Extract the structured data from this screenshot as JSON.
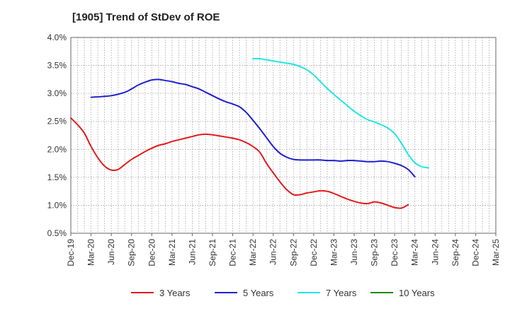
{
  "chart_data": {
    "type": "line",
    "title": "[1905]  Trend of StDev of ROE",
    "xlabel": "",
    "ylabel": "",
    "ylim": [
      0.5,
      4.0
    ],
    "y_ticks": [
      0.5,
      1.0,
      1.5,
      2.0,
      2.5,
      3.0,
      3.5,
      4.0
    ],
    "y_tick_labels": [
      "0.5%",
      "1.0%",
      "1.5%",
      "2.0%",
      "2.5%",
      "3.0%",
      "3.5%",
      "4.0%"
    ],
    "x_tick_labels": [
      "Dec-19",
      "Mar-20",
      "Jun-20",
      "Sep-20",
      "Dec-20",
      "Mar-21",
      "Jun-21",
      "Sep-21",
      "Dec-21",
      "Mar-22",
      "Jun-22",
      "Sep-22",
      "Dec-22",
      "Mar-23",
      "Jun-23",
      "Sep-23",
      "Dec-23",
      "Mar-24",
      "Jun-24",
      "Sep-24",
      "Dec-24",
      "Mar-25"
    ],
    "grid": true,
    "legend_position": "bottom",
    "series": [
      {
        "name": "3 Years",
        "color": "#e31a1c",
        "points": [
          [
            0,
            2.56
          ],
          [
            1,
            2.44
          ],
          [
            2,
            2.29
          ],
          [
            3,
            2.05
          ],
          [
            4,
            1.85
          ],
          [
            5,
            1.7
          ],
          [
            6,
            1.63
          ],
          [
            7,
            1.64
          ],
          [
            8,
            1.73
          ],
          [
            9,
            1.82
          ],
          [
            10,
            1.89
          ],
          [
            11,
            1.96
          ],
          [
            12,
            2.02
          ],
          [
            13,
            2.07
          ],
          [
            14,
            2.1
          ],
          [
            15,
            2.14
          ],
          [
            16,
            2.17
          ],
          [
            17,
            2.2
          ],
          [
            18,
            2.23
          ],
          [
            19,
            2.26
          ],
          [
            20,
            2.27
          ],
          [
            21,
            2.26
          ],
          [
            22,
            2.24
          ],
          [
            23,
            2.22
          ],
          [
            24,
            2.2
          ],
          [
            25,
            2.17
          ],
          [
            26,
            2.12
          ],
          [
            27,
            2.05
          ],
          [
            28,
            1.95
          ],
          [
            29,
            1.75
          ],
          [
            30,
            1.58
          ],
          [
            31,
            1.42
          ],
          [
            32,
            1.28
          ],
          [
            33,
            1.19
          ],
          [
            34,
            1.19
          ],
          [
            35,
            1.22
          ],
          [
            36,
            1.24
          ],
          [
            37,
            1.26
          ],
          [
            38,
            1.25
          ],
          [
            39,
            1.21
          ],
          [
            40,
            1.16
          ],
          [
            41,
            1.11
          ],
          [
            42,
            1.07
          ],
          [
            43,
            1.04
          ],
          [
            44,
            1.03
          ],
          [
            45,
            1.06
          ],
          [
            46,
            1.04
          ],
          [
            47,
            1.0
          ],
          [
            48,
            0.96
          ],
          [
            49,
            0.95
          ],
          [
            50,
            1.01
          ]
        ]
      },
      {
        "name": "5 Years",
        "color": "#1f1fd0",
        "points": [
          [
            3,
            2.93
          ],
          [
            6,
            2.96
          ],
          [
            8,
            3.02
          ],
          [
            9,
            3.08
          ],
          [
            10,
            3.15
          ],
          [
            11,
            3.2
          ],
          [
            12,
            3.24
          ],
          [
            13,
            3.25
          ],
          [
            14,
            3.23
          ],
          [
            15,
            3.21
          ],
          [
            16,
            3.18
          ],
          [
            17,
            3.16
          ],
          [
            18,
            3.12
          ],
          [
            19,
            3.08
          ],
          [
            20,
            3.02
          ],
          [
            21,
            2.96
          ],
          [
            22,
            2.9
          ],
          [
            23,
            2.85
          ],
          [
            24,
            2.81
          ],
          [
            25,
            2.76
          ],
          [
            26,
            2.66
          ],
          [
            27,
            2.52
          ],
          [
            28,
            2.37
          ],
          [
            29,
            2.21
          ],
          [
            30,
            2.05
          ],
          [
            31,
            1.93
          ],
          [
            32,
            1.86
          ],
          [
            33,
            1.82
          ],
          [
            34,
            1.81
          ],
          [
            35,
            1.81
          ],
          [
            36,
            1.81
          ],
          [
            37,
            1.81
          ],
          [
            38,
            1.8
          ],
          [
            39,
            1.8
          ],
          [
            40,
            1.79
          ],
          [
            41,
            1.8
          ],
          [
            42,
            1.8
          ],
          [
            43,
            1.79
          ],
          [
            44,
            1.78
          ],
          [
            45,
            1.78
          ],
          [
            46,
            1.79
          ],
          [
            47,
            1.78
          ],
          [
            48,
            1.75
          ],
          [
            49,
            1.71
          ],
          [
            50,
            1.64
          ],
          [
            51,
            1.51
          ]
        ]
      },
      {
        "name": "7 Years",
        "color": "#22e5e5",
        "points": [
          [
            27,
            3.62
          ],
          [
            28,
            3.62
          ],
          [
            29,
            3.6
          ],
          [
            30,
            3.58
          ],
          [
            31,
            3.56
          ],
          [
            32,
            3.54
          ],
          [
            33,
            3.52
          ],
          [
            34,
            3.48
          ],
          [
            35,
            3.42
          ],
          [
            36,
            3.33
          ],
          [
            37,
            3.21
          ],
          [
            38,
            3.09
          ],
          [
            39,
            2.98
          ],
          [
            40,
            2.88
          ],
          [
            41,
            2.78
          ],
          [
            42,
            2.68
          ],
          [
            43,
            2.6
          ],
          [
            44,
            2.53
          ],
          [
            45,
            2.49
          ],
          [
            46,
            2.44
          ],
          [
            47,
            2.38
          ],
          [
            48,
            2.28
          ],
          [
            49,
            2.11
          ],
          [
            50,
            1.91
          ],
          [
            51,
            1.76
          ],
          [
            52,
            1.69
          ],
          [
            53,
            1.67
          ]
        ]
      },
      {
        "name": "10 Years",
        "color": "#1a8a1a",
        "points": []
      }
    ]
  }
}
